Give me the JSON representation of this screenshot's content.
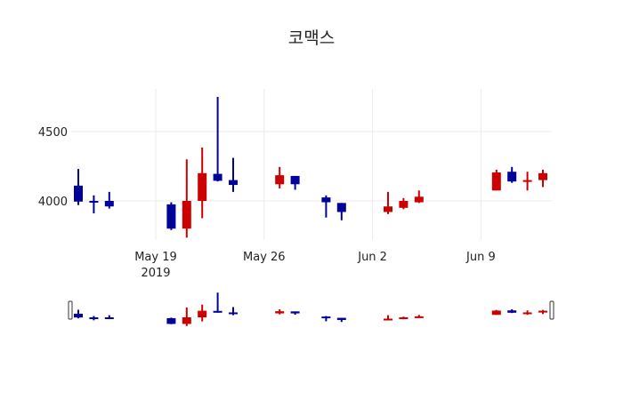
{
  "chart_data": {
    "type": "candlestick",
    "title": "코맥스",
    "xlabel": "",
    "ylabel": "",
    "ylim": [
      3725,
      4780
    ],
    "yticks": [
      4000,
      4500
    ],
    "xticks": [
      {
        "label": "May 19",
        "sub": "2019",
        "date": "2019-05-19"
      },
      {
        "label": "May 26",
        "sub": "",
        "date": "2019-05-26"
      },
      {
        "label": "Jun 2",
        "sub": "",
        "date": "2019-06-02"
      },
      {
        "label": "Jun 9",
        "sub": "",
        "date": "2019-06-09"
      }
    ],
    "grid": true,
    "increasing_color": "#cc0000",
    "decreasing_color": "#00009b",
    "rangeslider": true,
    "candles": [
      {
        "date": "2019-05-14",
        "open": 4110,
        "high": 4230,
        "low": 3970,
        "close": 3995
      },
      {
        "date": "2019-05-15",
        "open": 4000,
        "high": 4040,
        "low": 3910,
        "close": 3990
      },
      {
        "date": "2019-05-16",
        "open": 4000,
        "high": 4065,
        "low": 3945,
        "close": 3960
      },
      {
        "date": "2019-05-20",
        "open": 3975,
        "high": 3990,
        "low": 3790,
        "close": 3800
      },
      {
        "date": "2019-05-21",
        "open": 3800,
        "high": 4300,
        "low": 3735,
        "close": 4000
      },
      {
        "date": "2019-05-22",
        "open": 4000,
        "high": 4385,
        "low": 3875,
        "close": 4200
      },
      {
        "date": "2019-05-23",
        "open": 4195,
        "high": 4750,
        "low": 4140,
        "close": 4145
      },
      {
        "date": "2019-05-24",
        "open": 4150,
        "high": 4310,
        "low": 4065,
        "close": 4115
      },
      {
        "date": "2019-05-27",
        "open": 4120,
        "high": 4245,
        "low": 4090,
        "close": 4185
      },
      {
        "date": "2019-05-28",
        "open": 4180,
        "high": 4180,
        "low": 4080,
        "close": 4120
      },
      {
        "date": "2019-05-30",
        "open": 4025,
        "high": 4040,
        "low": 3880,
        "close": 3990
      },
      {
        "date": "2019-05-31",
        "open": 3985,
        "high": 3985,
        "low": 3860,
        "close": 3920
      },
      {
        "date": "2019-06-03",
        "open": 3920,
        "high": 4065,
        "low": 3905,
        "close": 3960
      },
      {
        "date": "2019-06-04",
        "open": 3950,
        "high": 4020,
        "low": 3940,
        "close": 4000
      },
      {
        "date": "2019-06-05",
        "open": 3990,
        "high": 4075,
        "low": 3985,
        "close": 4030
      },
      {
        "date": "2019-06-10",
        "open": 4075,
        "high": 4225,
        "low": 4075,
        "close": 4205
      },
      {
        "date": "2019-06-11",
        "open": 4210,
        "high": 4245,
        "low": 4130,
        "close": 4140
      },
      {
        "date": "2019-06-12",
        "open": 4140,
        "high": 4210,
        "low": 4075,
        "close": 4150
      },
      {
        "date": "2019-06-13",
        "open": 4150,
        "high": 4225,
        "low": 4100,
        "close": 4200
      }
    ]
  }
}
